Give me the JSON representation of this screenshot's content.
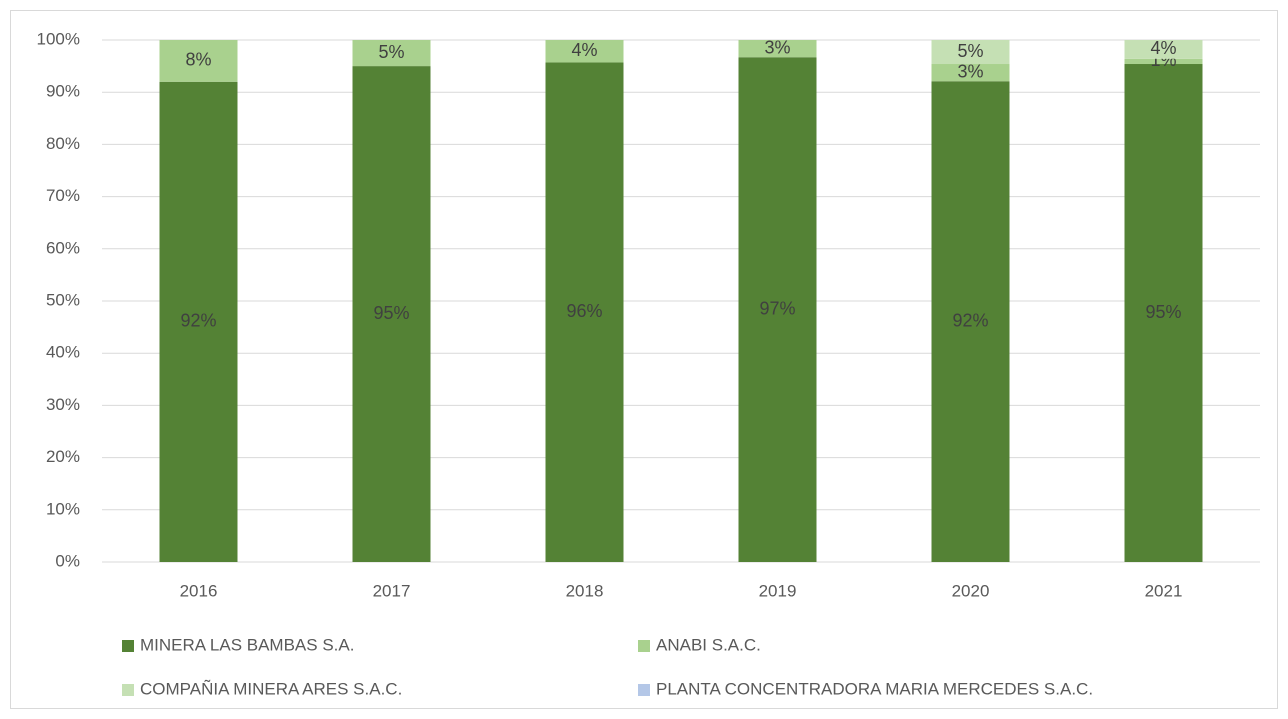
{
  "chart_data": {
    "type": "stacked_bar",
    "categories": [
      "2016",
      "2017",
      "2018",
      "2019",
      "2020",
      "2021"
    ],
    "series": [
      {
        "name": "MINERA LAS BAMBAS S.A.",
        "color": "#548235",
        "values": [
          92.0,
          95.0,
          95.7,
          96.7,
          92.1,
          95.4
        ],
        "value_labels": [
          "92%",
          "95%",
          "96%",
          "97%",
          "92%",
          "95%"
        ]
      },
      {
        "name": "ANABI S.A.C.",
        "color": "#a9d18e",
        "values": [
          8.0,
          5.0,
          4.3,
          3.3,
          3.3,
          1.0
        ],
        "value_labels": [
          "8%",
          "5%",
          "4%",
          "3%",
          "3%",
          "1%"
        ]
      },
      {
        "name": "COMPAÑIA MINERA ARES S.A.C.",
        "color": "#c5e0b4",
        "values": [
          0,
          0,
          0,
          0,
          4.6,
          3.6
        ],
        "value_labels": [
          null,
          null,
          null,
          null,
          "5%",
          "4%"
        ]
      },
      {
        "name": "PLANTA CONCENTRADORA MARIA MERCEDES S.A.C.",
        "color": "#b4c7e7",
        "values": [
          0,
          0,
          0,
          0,
          0,
          0
        ]
      }
    ],
    "ylim": [
      0,
      100
    ],
    "yticks": [
      {
        "value": 0,
        "label": "0%"
      },
      {
        "value": 10,
        "label": "10%"
      },
      {
        "value": 20,
        "label": "20%"
      },
      {
        "value": 30,
        "label": "30%"
      },
      {
        "value": 40,
        "label": "40%"
      },
      {
        "value": 50,
        "label": "50%"
      },
      {
        "value": 60,
        "label": "60%"
      },
      {
        "value": 70,
        "label": "70%"
      },
      {
        "value": 80,
        "label": "80%"
      },
      {
        "value": 90,
        "label": "90%"
      },
      {
        "value": 100,
        "label": "100%"
      }
    ],
    "grid": true,
    "legend": "bottom"
  }
}
